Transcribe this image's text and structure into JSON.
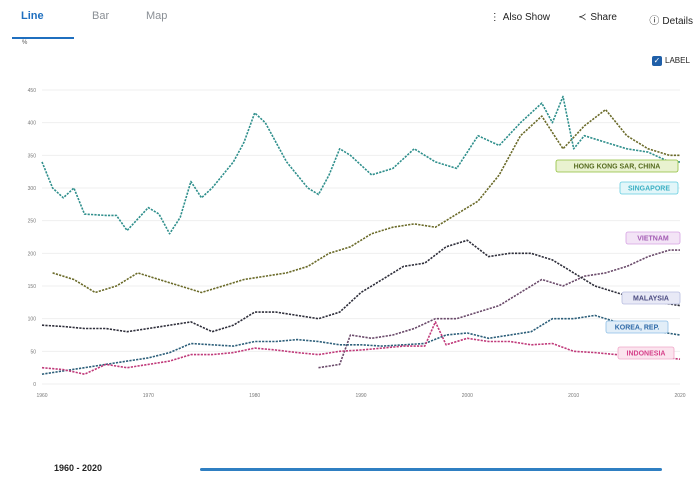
{
  "tabs": {
    "line": "Line",
    "bar": "Bar",
    "map": "Map"
  },
  "actions": {
    "also_show": "Also Show",
    "share": "Share",
    "details": "Details"
  },
  "unit": "%",
  "labels_toggle": "LABEL",
  "footer": {
    "range": "1960 - 2020"
  },
  "colors": {
    "accent": "#1f6fbf"
  },
  "chart_data": {
    "type": "line",
    "y_unit": "%",
    "ylim": [
      0,
      450
    ],
    "yticks": [
      "0",
      "50",
      "100",
      "150",
      "200",
      "250",
      "300",
      "350",
      "400",
      "450"
    ],
    "xlim": [
      1960,
      2020
    ],
    "xticks": [
      "1960",
      "1970",
      "1980",
      "1990",
      "2000",
      "2010",
      "2020"
    ],
    "grid": true,
    "series": [
      {
        "name": "HONG KONG SAR, CHINA",
        "color": "#6b6b2a",
        "label_bg": "#e9f2d0",
        "label_border": "#8fbf3a",
        "label_text": "#556b1e",
        "points": [
          [
            1961,
            170
          ],
          [
            1963,
            160
          ],
          [
            1965,
            140
          ],
          [
            1967,
            150
          ],
          [
            1969,
            170
          ],
          [
            1971,
            160
          ],
          [
            1973,
            150
          ],
          [
            1975,
            140
          ],
          [
            1977,
            150
          ],
          [
            1979,
            160
          ],
          [
            1981,
            165
          ],
          [
            1983,
            170
          ],
          [
            1985,
            180
          ],
          [
            1987,
            200
          ],
          [
            1989,
            210
          ],
          [
            1991,
            230
          ],
          [
            1993,
            240
          ],
          [
            1995,
            245
          ],
          [
            1997,
            240
          ],
          [
            1999,
            260
          ],
          [
            2001,
            280
          ],
          [
            2003,
            320
          ],
          [
            2005,
            380
          ],
          [
            2007,
            410
          ],
          [
            2009,
            360
          ],
          [
            2011,
            395
          ],
          [
            2013,
            420
          ],
          [
            2015,
            380
          ],
          [
            2017,
            360
          ],
          [
            2019,
            350
          ],
          [
            2020,
            350
          ]
        ]
      },
      {
        "name": "SINGAPORE",
        "color": "#2f8f8c",
        "label_bg": "#e2f6f9",
        "label_border": "#62cde0",
        "label_text": "#3bb0c4",
        "points": [
          [
            1960,
            340
          ],
          [
            1961,
            300
          ],
          [
            1962,
            285
          ],
          [
            1963,
            300
          ],
          [
            1964,
            260
          ],
          [
            1966,
            258
          ],
          [
            1967,
            258
          ],
          [
            1968,
            235
          ],
          [
            1970,
            270
          ],
          [
            1971,
            260
          ],
          [
            1972,
            230
          ],
          [
            1973,
            255
          ],
          [
            1974,
            310
          ],
          [
            1975,
            285
          ],
          [
            1976,
            300
          ],
          [
            1977,
            320
          ],
          [
            1978,
            340
          ],
          [
            1979,
            370
          ],
          [
            1980,
            415
          ],
          [
            1981,
            400
          ],
          [
            1983,
            340
          ],
          [
            1985,
            300
          ],
          [
            1986,
            290
          ],
          [
            1987,
            320
          ],
          [
            1988,
            360
          ],
          [
            1989,
            350
          ],
          [
            1991,
            320
          ],
          [
            1993,
            330
          ],
          [
            1995,
            360
          ],
          [
            1997,
            340
          ],
          [
            1999,
            330
          ],
          [
            2001,
            380
          ],
          [
            2003,
            365
          ],
          [
            2005,
            400
          ],
          [
            2007,
            430
          ],
          [
            2008,
            400
          ],
          [
            2009,
            440
          ],
          [
            2010,
            360
          ],
          [
            2011,
            380
          ],
          [
            2013,
            370
          ],
          [
            2015,
            360
          ],
          [
            2017,
            355
          ],
          [
            2019,
            340
          ],
          [
            2020,
            340
          ]
        ]
      },
      {
        "name": "VIETNAM",
        "color": "#6a4a6a",
        "label_bg": "#f3e4f6",
        "label_border": "#d6a1e3",
        "label_text": "#a25ab3",
        "points": [
          [
            1986,
            25
          ],
          [
            1988,
            30
          ],
          [
            1989,
            75
          ],
          [
            1991,
            70
          ],
          [
            1993,
            75
          ],
          [
            1995,
            85
          ],
          [
            1997,
            100
          ],
          [
            1999,
            100
          ],
          [
            2001,
            110
          ],
          [
            2003,
            120
          ],
          [
            2005,
            140
          ],
          [
            2007,
            160
          ],
          [
            2009,
            150
          ],
          [
            2011,
            165
          ],
          [
            2013,
            170
          ],
          [
            2015,
            180
          ],
          [
            2017,
            195
          ],
          [
            2019,
            205
          ],
          [
            2020,
            205
          ]
        ]
      },
      {
        "name": "MALAYSIA",
        "color": "#2e2e3a",
        "label_bg": "#e8e9f6",
        "label_border": "#b7bde0",
        "label_text": "#4a4a80",
        "points": [
          [
            1960,
            90
          ],
          [
            1962,
            88
          ],
          [
            1964,
            85
          ],
          [
            1966,
            85
          ],
          [
            1968,
            80
          ],
          [
            1970,
            85
          ],
          [
            1972,
            90
          ],
          [
            1974,
            95
          ],
          [
            1976,
            80
          ],
          [
            1978,
            90
          ],
          [
            1980,
            110
          ],
          [
            1982,
            110
          ],
          [
            1984,
            105
          ],
          [
            1986,
            100
          ],
          [
            1988,
            110
          ],
          [
            1990,
            140
          ],
          [
            1992,
            160
          ],
          [
            1994,
            180
          ],
          [
            1996,
            185
          ],
          [
            1998,
            210
          ],
          [
            2000,
            220
          ],
          [
            2002,
            195
          ],
          [
            2004,
            200
          ],
          [
            2006,
            200
          ],
          [
            2008,
            190
          ],
          [
            2010,
            170
          ],
          [
            2012,
            150
          ],
          [
            2014,
            140
          ],
          [
            2016,
            130
          ],
          [
            2018,
            125
          ],
          [
            2020,
            120
          ]
        ]
      },
      {
        "name": "KOREA, REP.",
        "color": "#2d5f7a",
        "label_bg": "#e2eef8",
        "label_border": "#8fbfe6",
        "label_text": "#2f6aa8",
        "points": [
          [
            1960,
            15
          ],
          [
            1962,
            20
          ],
          [
            1964,
            25
          ],
          [
            1966,
            30
          ],
          [
            1968,
            35
          ],
          [
            1970,
            40
          ],
          [
            1972,
            48
          ],
          [
            1974,
            62
          ],
          [
            1976,
            60
          ],
          [
            1978,
            58
          ],
          [
            1980,
            65
          ],
          [
            1982,
            65
          ],
          [
            1984,
            68
          ],
          [
            1986,
            65
          ],
          [
            1988,
            60
          ],
          [
            1990,
            60
          ],
          [
            1992,
            58
          ],
          [
            1994,
            60
          ],
          [
            1996,
            62
          ],
          [
            1998,
            75
          ],
          [
            2000,
            78
          ],
          [
            2002,
            70
          ],
          [
            2004,
            75
          ],
          [
            2006,
            80
          ],
          [
            2008,
            100
          ],
          [
            2010,
            100
          ],
          [
            2012,
            105
          ],
          [
            2014,
            95
          ],
          [
            2016,
            85
          ],
          [
            2018,
            80
          ],
          [
            2020,
            75
          ]
        ]
      },
      {
        "name": "INDONESIA",
        "color": "#c03a7a",
        "label_bg": "#fbe4ee",
        "label_border": "#f0a6c8",
        "label_text": "#d6408a",
        "points": [
          [
            1960,
            25
          ],
          [
            1962,
            22
          ],
          [
            1964,
            15
          ],
          [
            1966,
            30
          ],
          [
            1968,
            25
          ],
          [
            1970,
            30
          ],
          [
            1972,
            35
          ],
          [
            1974,
            45
          ],
          [
            1976,
            45
          ],
          [
            1978,
            48
          ],
          [
            1980,
            55
          ],
          [
            1982,
            52
          ],
          [
            1984,
            48
          ],
          [
            1986,
            45
          ],
          [
            1988,
            50
          ],
          [
            1990,
            52
          ],
          [
            1992,
            55
          ],
          [
            1994,
            58
          ],
          [
            1996,
            58
          ],
          [
            1997,
            95
          ],
          [
            1998,
            60
          ],
          [
            2000,
            70
          ],
          [
            2002,
            65
          ],
          [
            2004,
            65
          ],
          [
            2006,
            60
          ],
          [
            2008,
            62
          ],
          [
            2010,
            50
          ],
          [
            2012,
            48
          ],
          [
            2014,
            45
          ],
          [
            2016,
            40
          ],
          [
            2018,
            42
          ],
          [
            2020,
            38
          ]
        ]
      }
    ]
  }
}
